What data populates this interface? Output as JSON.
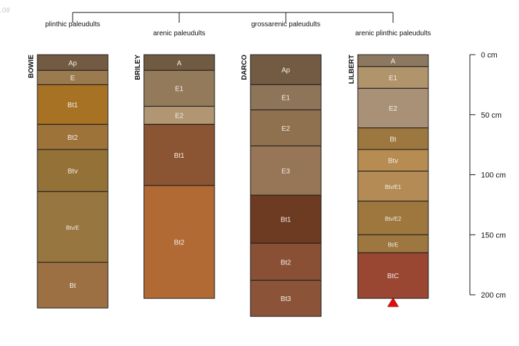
{
  "corner_label": ".08",
  "tree": {
    "names": [
      "plinthic paleudults",
      "arenic paleudults",
      "grossarenic paleudults",
      "arenic plinthic paleudults"
    ]
  },
  "depth_axis": {
    "unit": "cm",
    "max_cm": 200,
    "ticks": [
      {
        "value": 0,
        "label": "0 cm"
      },
      {
        "value": 50,
        "label": "50 cm"
      },
      {
        "value": 100,
        "label": "100 cm"
      },
      {
        "value": 150,
        "label": "150 cm"
      },
      {
        "value": 200,
        "label": "200 cm"
      }
    ]
  },
  "profiles": [
    {
      "name": "BOWIE",
      "horizons": [
        {
          "name": "Ap",
          "top": 0,
          "bottom": 13,
          "color": "#735a42"
        },
        {
          "name": "E",
          "top": 13,
          "bottom": 25,
          "color": "#9b7a4f"
        },
        {
          "name": "Bt1",
          "top": 25,
          "bottom": 58,
          "color": "#a77224"
        },
        {
          "name": "Bt2",
          "top": 58,
          "bottom": 79,
          "color": "#9d733a"
        },
        {
          "name": "Btv",
          "top": 79,
          "bottom": 114,
          "color": "#937137"
        },
        {
          "name": "Btv/E",
          "top": 114,
          "bottom": 173,
          "color": "#977640"
        },
        {
          "name": "Bt",
          "top": 173,
          "bottom": 211,
          "color": "#9d7043"
        }
      ]
    },
    {
      "name": "BRILEY",
      "horizons": [
        {
          "name": "A",
          "top": 0,
          "bottom": 13,
          "color": "#715a42"
        },
        {
          "name": "E1",
          "top": 13,
          "bottom": 43,
          "color": "#937a5b"
        },
        {
          "name": "E2",
          "top": 43,
          "bottom": 58,
          "color": "#b09672"
        },
        {
          "name": "Bt1",
          "top": 58,
          "bottom": 109,
          "color": "#8b5533"
        },
        {
          "name": "Bt2",
          "top": 109,
          "bottom": 203,
          "color": "#b26a35"
        }
      ]
    },
    {
      "name": "DARCO",
      "horizons": [
        {
          "name": "Ap",
          "top": 0,
          "bottom": 25,
          "color": "#735b43"
        },
        {
          "name": "E1",
          "top": 25,
          "bottom": 46,
          "color": "#8e7559"
        },
        {
          "name": "E2",
          "top": 46,
          "bottom": 76,
          "color": "#8f7150"
        },
        {
          "name": "E3",
          "top": 76,
          "bottom": 117,
          "color": "#977557"
        },
        {
          "name": "Bt1",
          "top": 117,
          "bottom": 157,
          "color": "#6d3a22"
        },
        {
          "name": "Bt2",
          "top": 157,
          "bottom": 188,
          "color": "#8a5036"
        },
        {
          "name": "Bt3",
          "top": 188,
          "bottom": 218,
          "color": "#8b5439"
        }
      ]
    },
    {
      "name": "LILBERT",
      "horizons": [
        {
          "name": "A",
          "top": 0,
          "bottom": 10,
          "color": "#8c7860"
        },
        {
          "name": "E1",
          "top": 10,
          "bottom": 28,
          "color": "#b0946b"
        },
        {
          "name": "E2",
          "top": 28,
          "bottom": 61,
          "color": "#a99177"
        },
        {
          "name": "Bt",
          "top": 61,
          "bottom": 79,
          "color": "#9c7840"
        },
        {
          "name": "Btv",
          "top": 79,
          "bottom": 97,
          "color": "#b78c52"
        },
        {
          "name": "Btv/E1",
          "top": 97,
          "bottom": 122,
          "color": "#b48b55"
        },
        {
          "name": "Btv/E2",
          "top": 122,
          "bottom": 150,
          "color": "#9e773f"
        },
        {
          "name": "Bt/E",
          "top": 150,
          "bottom": 165,
          "color": "#9e7740"
        },
        {
          "name": "BtC",
          "top": 165,
          "bottom": 203,
          "color": "#994733"
        }
      ]
    }
  ],
  "marker": {
    "profile": "LILBERT",
    "depth": 203,
    "color": "#e30b0b"
  }
}
